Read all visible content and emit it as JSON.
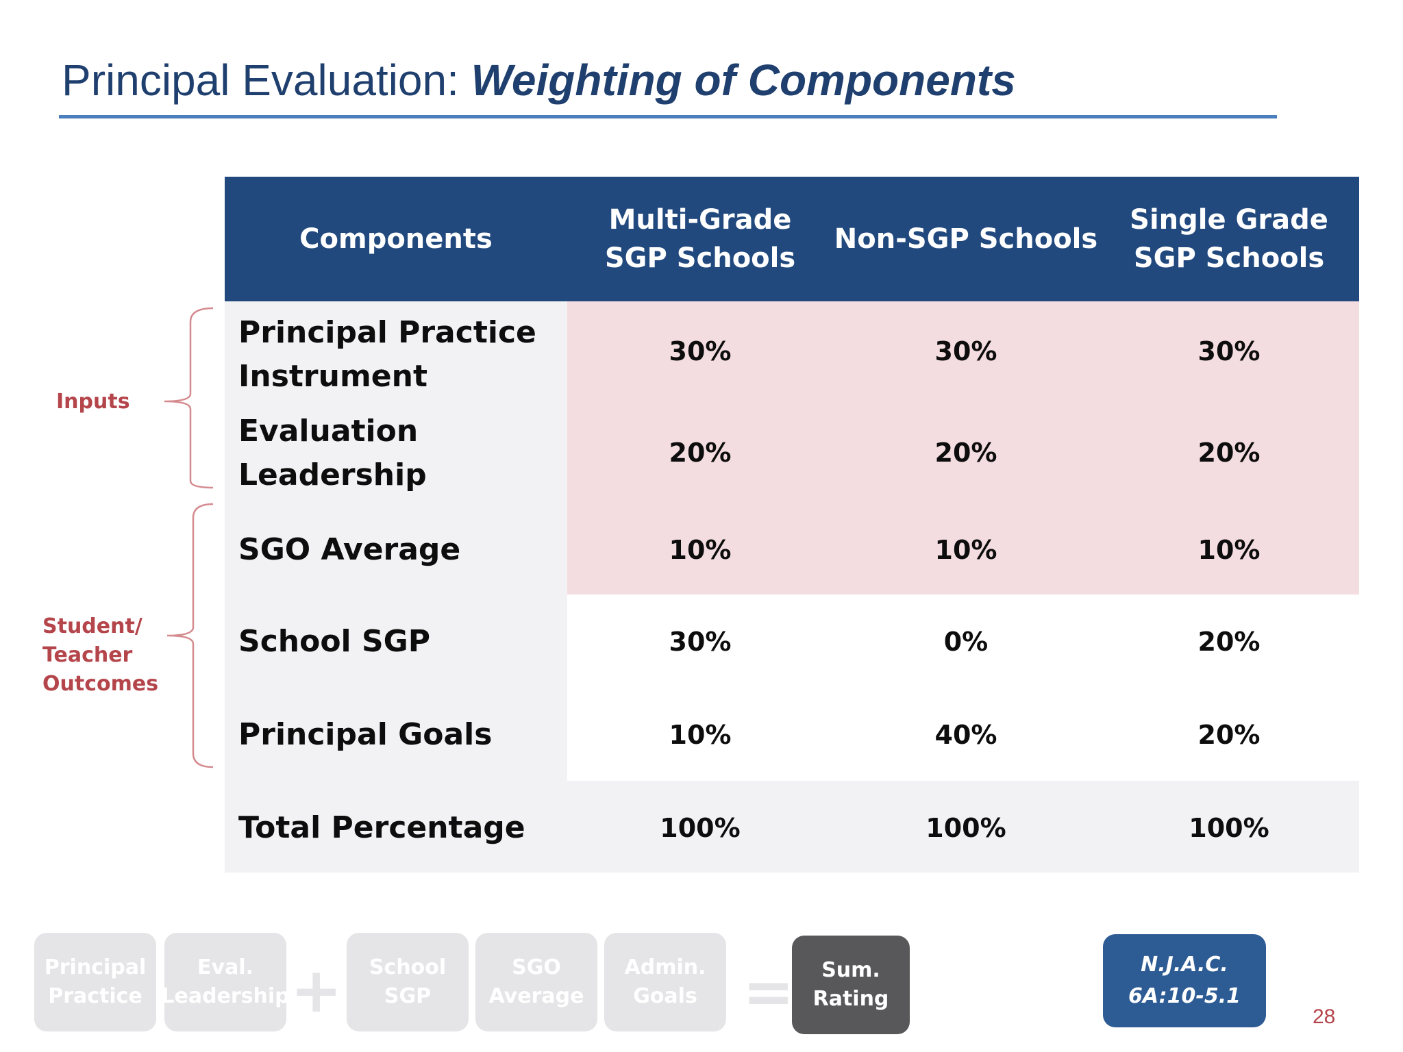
{
  "title": {
    "plain": "Principal Evaluation: ",
    "emphasis": "Weighting of Components"
  },
  "table": {
    "headers": [
      "Components",
      "Multi-Grade SGP Schools",
      "Non-SGP Schools",
      "Single Grade SGP Schools"
    ],
    "header_lines": {
      "h1a": "Multi-Grade",
      "h1b": "SGP Schools",
      "h3a": "Single Grade",
      "h3b": "SGP Schools"
    },
    "rows": [
      {
        "label_a": "Principal Practice",
        "label_b": "Instrument",
        "values": [
          "30%",
          "30%",
          "30%"
        ]
      },
      {
        "label_a": "Evaluation",
        "label_b": "Leadership",
        "values": [
          "20%",
          "20%",
          "20%"
        ]
      },
      {
        "label": "SGO Average",
        "values": [
          "10%",
          "10%",
          "10%"
        ]
      },
      {
        "label": "School SGP",
        "values": [
          "30%",
          "0%",
          "20%"
        ]
      },
      {
        "label": "Principal Goals",
        "values": [
          "10%",
          "40%",
          "20%"
        ]
      },
      {
        "label": "Total Percentage",
        "values": [
          "100%",
          "100%",
          "100%"
        ]
      }
    ]
  },
  "groups": {
    "inputs": "Inputs",
    "outcomes_a": "Student/",
    "outcomes_b": "Teacher",
    "outcomes_c": "Outcomes"
  },
  "equation": {
    "chips": [
      {
        "a": "Principal",
        "b": "Practice"
      },
      {
        "a": "Eval.",
        "b": "Leadership"
      },
      {
        "a": "School",
        "b": "SGP"
      },
      {
        "a": "SGO",
        "b": "Average"
      },
      {
        "a": "Admin.",
        "b": "Goals"
      }
    ],
    "plus": "+",
    "equals": "=",
    "result": {
      "a": "Sum.",
      "b": "Rating"
    }
  },
  "citation": {
    "a": "N.J.A.C.",
    "b": "6A:10-5.1"
  },
  "page_number": "28",
  "colors": {
    "header": "#21497e",
    "pink": "#f4dde0",
    "grey": "#f2f1f4",
    "accent": "#b4454a"
  }
}
